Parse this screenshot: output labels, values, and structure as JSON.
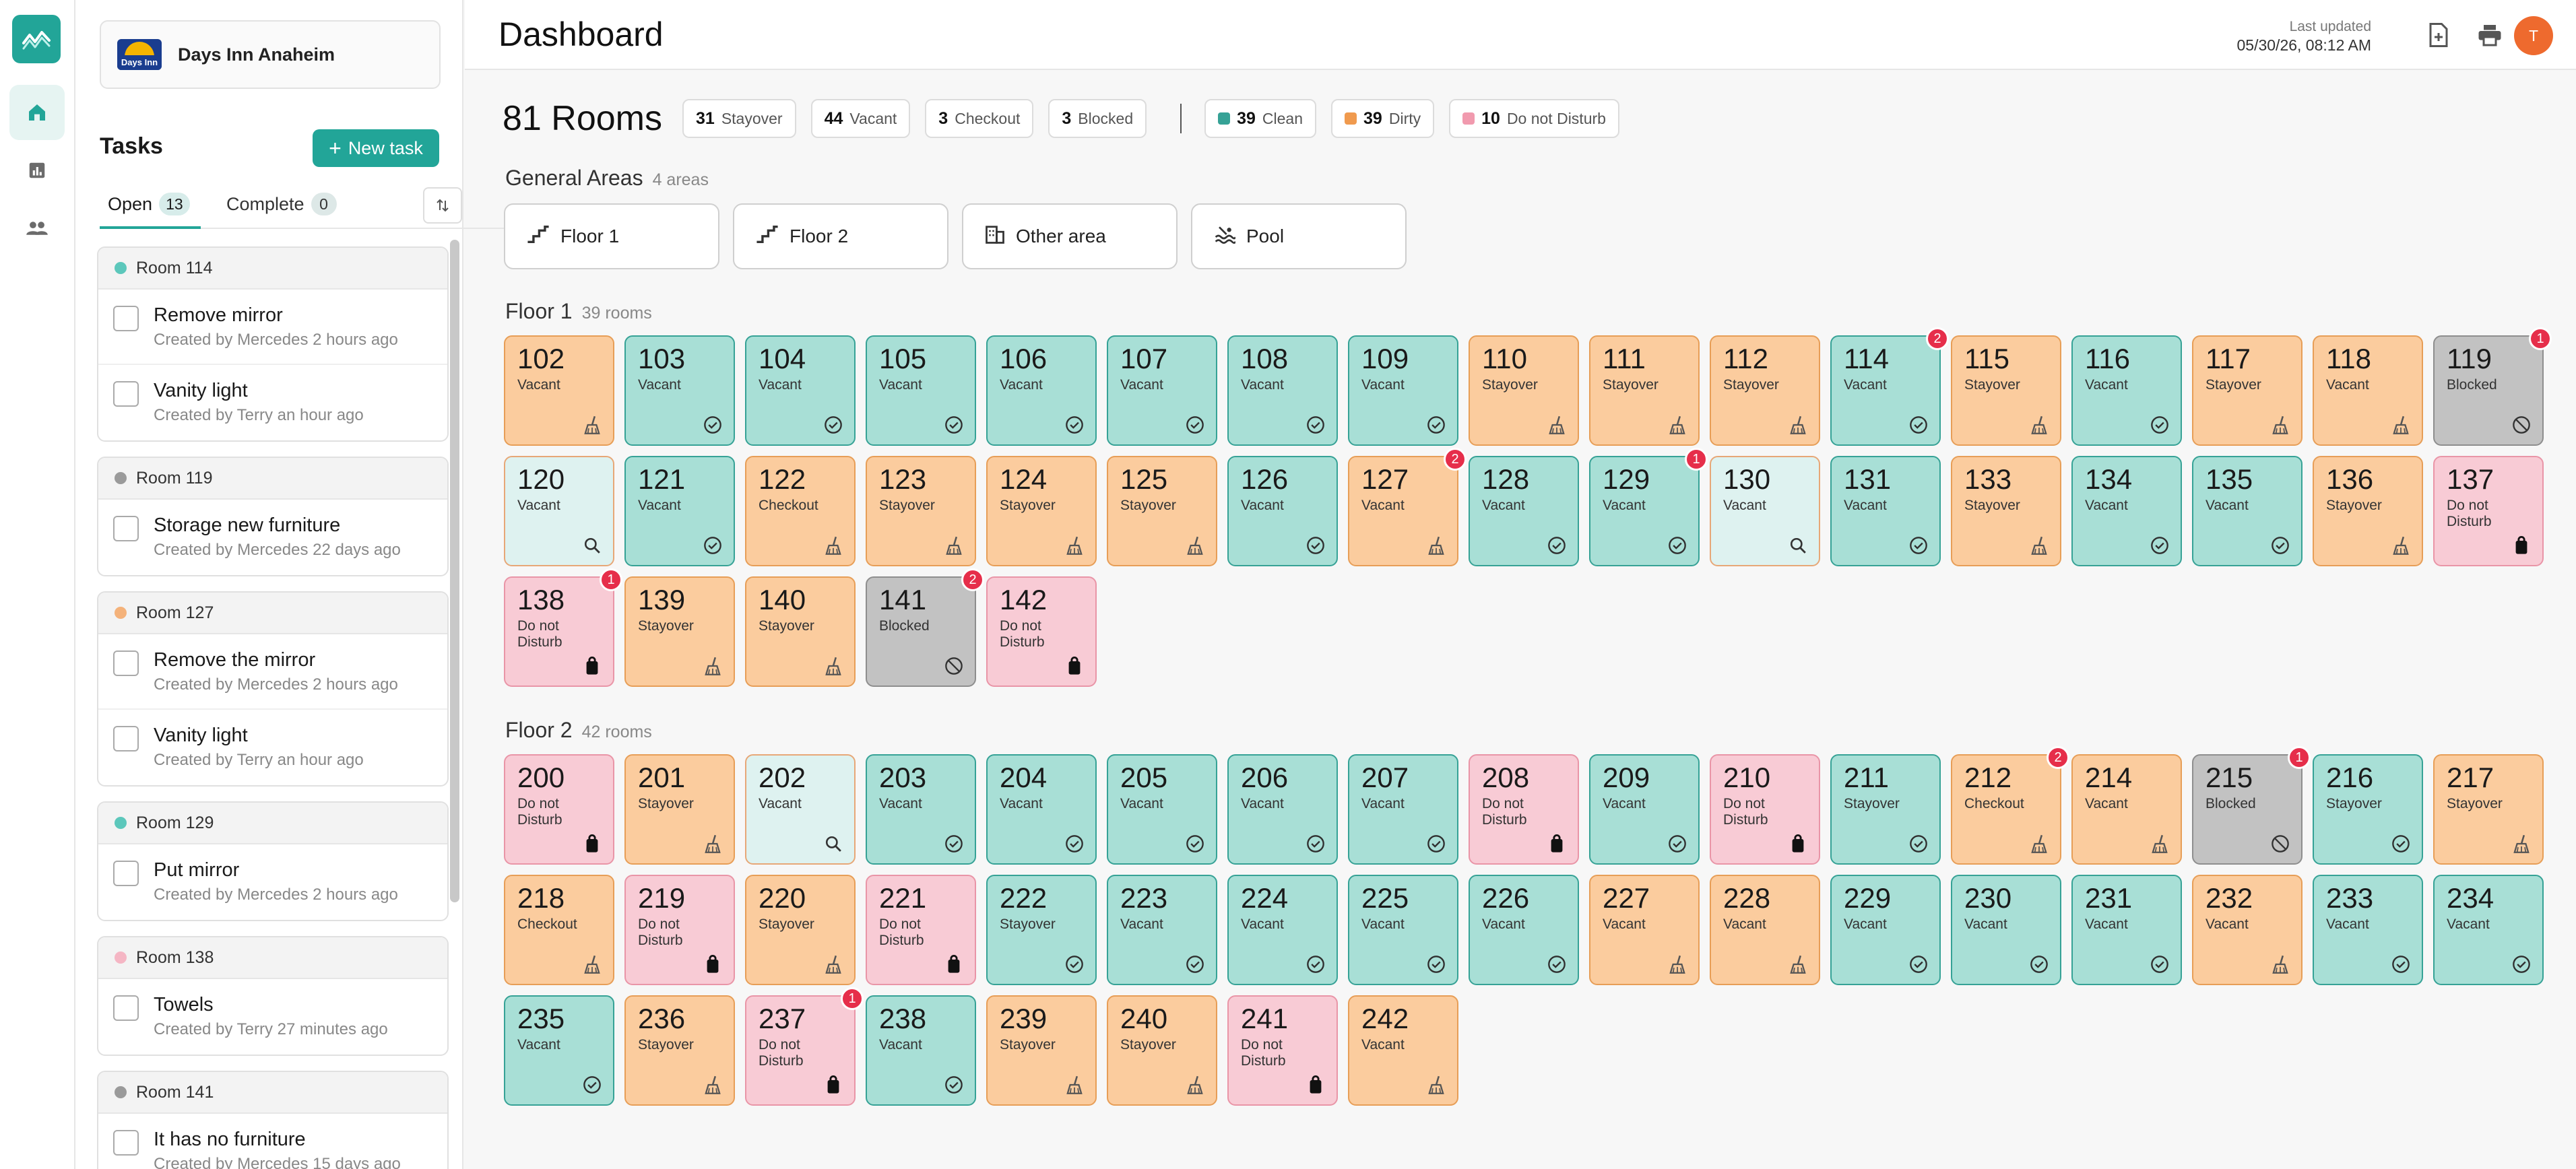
{
  "colors": {
    "accent": "#22a598",
    "clean": "#a8dfd6",
    "dirty": "#fbcc9e",
    "dnd": "#f8cbd5",
    "blocked": "#c2c2c2",
    "badge": "#e62e4a",
    "avatar": "#ee6a2e"
  },
  "rail": {
    "items": [
      {
        "icon": "home-icon",
        "active": true
      },
      {
        "icon": "chart-icon",
        "active": false
      },
      {
        "icon": "users-icon",
        "active": false
      }
    ]
  },
  "hotel": {
    "name": "Days Inn Anaheim",
    "logo_text": "Days Inn"
  },
  "tasks": {
    "title": "Tasks",
    "new_label": "New task",
    "tabs": {
      "open_label": "Open",
      "open_count": "13",
      "complete_label": "Complete",
      "complete_count": "0"
    },
    "groups": [
      {
        "room": "Room 114",
        "dot": "#5cc7bb",
        "items": [
          {
            "title": "Remove mirror",
            "meta": "Created by Mercedes 2 hours ago"
          },
          {
            "title": "Vanity light",
            "meta": "Created by Terry an hour ago"
          }
        ]
      },
      {
        "room": "Room 119",
        "dot": "#9a9a9a",
        "items": [
          {
            "title": "Storage new furniture",
            "meta": "Created by Mercedes 22 days ago"
          }
        ]
      },
      {
        "room": "Room 127",
        "dot": "#f4b27a",
        "items": [
          {
            "title": "Remove the mirror",
            "meta": "Created by Mercedes 2 hours ago"
          },
          {
            "title": "Vanity light",
            "meta": "Created by Terry an hour ago"
          }
        ]
      },
      {
        "room": "Room 129",
        "dot": "#5cc7bb",
        "items": [
          {
            "title": "Put mirror",
            "meta": "Created by Mercedes 2 hours ago"
          }
        ]
      },
      {
        "room": "Room 138",
        "dot": "#f5b6c4",
        "items": [
          {
            "title": "Towels",
            "meta": "Created by Terry 27 minutes ago"
          }
        ]
      },
      {
        "room": "Room 141",
        "dot": "#9a9a9a",
        "items": [
          {
            "title": "It has no furniture",
            "meta": "Created by Mercedes 15 days ago"
          }
        ]
      }
    ]
  },
  "header": {
    "title": "Dashboard",
    "updated_label": "Last updated",
    "updated_value": "05/30/26, 08:12 AM",
    "avatar_initial": "T"
  },
  "summary": {
    "rooms_label": "81 Rooms",
    "status_chips": [
      {
        "value": "31",
        "label": "Stayover"
      },
      {
        "value": "44",
        "label": "Vacant"
      },
      {
        "value": "3",
        "label": "Checkout"
      },
      {
        "value": "3",
        "label": "Blocked"
      }
    ],
    "clean_chips": [
      {
        "value": "39",
        "label": "Clean",
        "color": "#36a296"
      },
      {
        "value": "39",
        "label": "Dirty",
        "color": "#f09a4e"
      },
      {
        "value": "10",
        "label": "Do not Disturb",
        "color": "#f19aae"
      }
    ]
  },
  "general_areas": {
    "title": "General Areas",
    "count": "4 areas",
    "items": [
      {
        "label": "Floor 1",
        "icon": "stairs-icon"
      },
      {
        "label": "Floor 2",
        "icon": "stairs-icon"
      },
      {
        "label": "Other area",
        "icon": "building-icon"
      },
      {
        "label": "Pool",
        "icon": "pool-icon"
      }
    ]
  },
  "floors": [
    {
      "title": "Floor 1",
      "count": "39 rooms",
      "rooms": [
        {
          "num": "102",
          "status": "Vacant",
          "clean": "dirty"
        },
        {
          "num": "103",
          "status": "Vacant",
          "clean": "clean"
        },
        {
          "num": "104",
          "status": "Vacant",
          "clean": "clean"
        },
        {
          "num": "105",
          "status": "Vacant",
          "clean": "clean"
        },
        {
          "num": "106",
          "status": "Vacant",
          "clean": "clean"
        },
        {
          "num": "107",
          "status": "Vacant",
          "clean": "clean"
        },
        {
          "num": "108",
          "status": "Vacant",
          "clean": "clean"
        },
        {
          "num": "109",
          "status": "Vacant",
          "clean": "clean"
        },
        {
          "num": "110",
          "status": "Stayover",
          "clean": "dirty"
        },
        {
          "num": "111",
          "status": "Stayover",
          "clean": "dirty"
        },
        {
          "num": "112",
          "status": "Stayover",
          "clean": "dirty"
        },
        {
          "num": "114",
          "status": "Vacant",
          "clean": "clean",
          "badge": "2"
        },
        {
          "num": "115",
          "status": "Stayover",
          "clean": "dirty"
        },
        {
          "num": "116",
          "status": "Vacant",
          "clean": "clean"
        },
        {
          "num": "117",
          "status": "Stayover",
          "clean": "dirty"
        },
        {
          "num": "118",
          "status": "Vacant",
          "clean": "dirty"
        },
        {
          "num": "119",
          "status": "Blocked",
          "clean": "blocked",
          "badge": "1"
        },
        {
          "num": "120",
          "status": "Vacant",
          "clean": "inspect"
        },
        {
          "num": "121",
          "status": "Vacant",
          "clean": "clean"
        },
        {
          "num": "122",
          "status": "Checkout",
          "clean": "dirty"
        },
        {
          "num": "123",
          "status": "Stayover",
          "clean": "dirty"
        },
        {
          "num": "124",
          "status": "Stayover",
          "clean": "dirty"
        },
        {
          "num": "125",
          "status": "Stayover",
          "clean": "dirty"
        },
        {
          "num": "126",
          "status": "Vacant",
          "clean": "clean"
        },
        {
          "num": "127",
          "status": "Vacant",
          "clean": "dirty",
          "badge": "2"
        },
        {
          "num": "128",
          "status": "Vacant",
          "clean": "clean"
        },
        {
          "num": "129",
          "status": "Vacant",
          "clean": "clean",
          "badge": "1"
        },
        {
          "num": "130",
          "status": "Vacant",
          "clean": "inspect"
        },
        {
          "num": "131",
          "status": "Vacant",
          "clean": "clean"
        },
        {
          "num": "133",
          "status": "Stayover",
          "clean": "dirty"
        },
        {
          "num": "134",
          "status": "Vacant",
          "clean": "clean"
        },
        {
          "num": "135",
          "status": "Vacant",
          "clean": "clean"
        },
        {
          "num": "136",
          "status": "Stayover",
          "clean": "dirty"
        },
        {
          "num": "137",
          "status": "Do not Disturb",
          "clean": "dnd"
        },
        {
          "num": "138",
          "status": "Do not Disturb",
          "clean": "dnd",
          "badge": "1"
        },
        {
          "num": "139",
          "status": "Stayover",
          "clean": "dirty"
        },
        {
          "num": "140",
          "status": "Stayover",
          "clean": "dirty"
        },
        {
          "num": "141",
          "status": "Blocked",
          "clean": "blocked",
          "badge": "2"
        },
        {
          "num": "142",
          "status": "Do not Disturb",
          "clean": "dnd"
        }
      ]
    },
    {
      "title": "Floor 2",
      "count": "42 rooms",
      "rooms": [
        {
          "num": "200",
          "status": "Do not Disturb",
          "clean": "dnd"
        },
        {
          "num": "201",
          "status": "Stayover",
          "clean": "dirty"
        },
        {
          "num": "202",
          "status": "Vacant",
          "clean": "inspect"
        },
        {
          "num": "203",
          "status": "Vacant",
          "clean": "clean"
        },
        {
          "num": "204",
          "status": "Vacant",
          "clean": "clean"
        },
        {
          "num": "205",
          "status": "Vacant",
          "clean": "clean"
        },
        {
          "num": "206",
          "status": "Vacant",
          "clean": "clean"
        },
        {
          "num": "207",
          "status": "Vacant",
          "clean": "clean"
        },
        {
          "num": "208",
          "status": "Do not Disturb",
          "clean": "dnd"
        },
        {
          "num": "209",
          "status": "Vacant",
          "clean": "clean"
        },
        {
          "num": "210",
          "status": "Do not Disturb",
          "clean": "dnd"
        },
        {
          "num": "211",
          "status": "Stayover",
          "clean": "clean"
        },
        {
          "num": "212",
          "status": "Checkout",
          "clean": "dirty",
          "badge": "2"
        },
        {
          "num": "214",
          "status": "Vacant",
          "clean": "dirty"
        },
        {
          "num": "215",
          "status": "Blocked",
          "clean": "blocked",
          "badge": "1"
        },
        {
          "num": "216",
          "status": "Stayover",
          "clean": "clean"
        },
        {
          "num": "217",
          "status": "Stayover",
          "clean": "dirty"
        },
        {
          "num": "218",
          "status": "Checkout",
          "clean": "dirty"
        },
        {
          "num": "219",
          "status": "Do not Disturb",
          "clean": "dnd"
        },
        {
          "num": "220",
          "status": "Stayover",
          "clean": "dirty"
        },
        {
          "num": "221",
          "status": "Do not Disturb",
          "clean": "dnd"
        },
        {
          "num": "222",
          "status": "Stayover",
          "clean": "clean"
        },
        {
          "num": "223",
          "status": "Vacant",
          "clean": "clean"
        },
        {
          "num": "224",
          "status": "Vacant",
          "clean": "clean"
        },
        {
          "num": "225",
          "status": "Vacant",
          "clean": "clean"
        },
        {
          "num": "226",
          "status": "Vacant",
          "clean": "clean"
        },
        {
          "num": "227",
          "status": "Vacant",
          "clean": "dirty"
        },
        {
          "num": "228",
          "status": "Vacant",
          "clean": "dirty"
        },
        {
          "num": "229",
          "status": "Vacant",
          "clean": "clean"
        },
        {
          "num": "230",
          "status": "Vacant",
          "clean": "clean"
        },
        {
          "num": "231",
          "status": "Vacant",
          "clean": "clean"
        },
        {
          "num": "232",
          "status": "Vacant",
          "clean": "dirty"
        },
        {
          "num": "233",
          "status": "Vacant",
          "clean": "clean"
        },
        {
          "num": "234",
          "status": "Vacant",
          "clean": "clean"
        },
        {
          "num": "235",
          "status": "Vacant",
          "clean": "clean"
        },
        {
          "num": "236",
          "status": "Stayover",
          "clean": "dirty"
        },
        {
          "num": "237",
          "status": "Do not Disturb",
          "clean": "dnd",
          "badge": "1"
        },
        {
          "num": "238",
          "status": "Vacant",
          "clean": "clean"
        },
        {
          "num": "239",
          "status": "Stayover",
          "clean": "dirty"
        },
        {
          "num": "240",
          "status": "Stayover",
          "clean": "dirty"
        },
        {
          "num": "241",
          "status": "Do not Disturb",
          "clean": "dnd"
        },
        {
          "num": "242",
          "status": "Vacant",
          "clean": "dirty"
        }
      ]
    }
  ]
}
